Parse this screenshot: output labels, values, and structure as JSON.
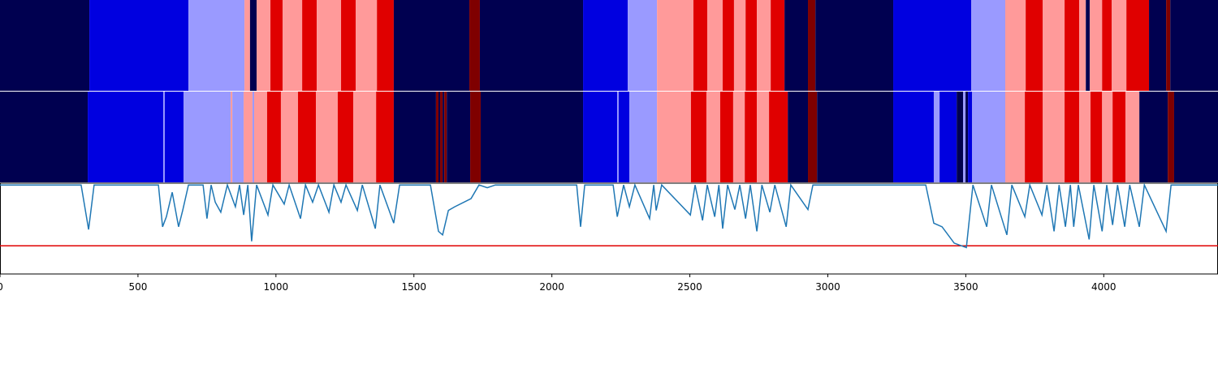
{
  "chart_data": {
    "type": "segmentation",
    "xlim": [
      0,
      4414
    ],
    "xticks": [
      0,
      500,
      1000,
      1500,
      2000,
      2500,
      3000,
      3500,
      4000
    ],
    "ylim": [
      0,
      1
    ],
    "bars": [
      {
        "edges": [
          0,
          324,
          683,
          886,
          906,
          930,
          980,
          1024,
          1095,
          1148,
          1236,
          1289,
          1366,
          1427,
          1701,
          1739,
          2113,
          2275,
          2381,
          2513,
          2563,
          2619,
          2660,
          2702,
          2743,
          2793,
          2843,
          2928,
          2955,
          3237,
          3520,
          3643,
          3717,
          3779,
          3858,
          3911,
          3935,
          3949,
          3994,
          4029,
          4082,
          4164,
          4226,
          4241,
          4414
        ],
        "colors": [
          "#000050",
          "#0000e0",
          "#9a9aff",
          "#ff9a9a",
          "#000050",
          "#ff9a9a",
          "#e00000",
          "#ff9a9a",
          "#e00000",
          "#ff9a9a",
          "#e00000",
          "#ff9a9a",
          "#e00000",
          "#000050",
          "#7f0000",
          "#000050",
          "#0000e0",
          "#9a9aff",
          "#ff9a9a",
          "#e00000",
          "#ff9a9a",
          "#e00000",
          "#ff9a9a",
          "#e00000",
          "#ff9a9a",
          "#e00000",
          "#000050",
          "#7f0000",
          "#000050",
          "#0000e0",
          "#9a9aff",
          "#ff9a9a",
          "#e00000",
          "#ff9a9a",
          "#e00000",
          "#ff9a9a",
          "#000050",
          "#ff9a9a",
          "#e00000",
          "#ff9a9a",
          "#e00000",
          "#000050",
          "#7f0000",
          "#000050"
        ]
      },
      {
        "edges": [
          0,
          318,
          592,
          597,
          665,
          836,
          842,
          883,
          915,
          921,
          968,
          1018,
          1080,
          1145,
          1224,
          1280,
          1363,
          1427,
          1580,
          1589,
          1595,
          1604,
          1610,
          1619,
          1704,
          1742,
          2113,
          2237,
          2242,
          2281,
          2381,
          2504,
          2560,
          2610,
          2657,
          2699,
          2743,
          2787,
          2855,
          2928,
          2961,
          3237,
          3384,
          3405,
          3467,
          3490,
          3499,
          3508,
          3523,
          3643,
          3714,
          3779,
          3858,
          3911,
          3952,
          3994,
          4032,
          4079,
          4129,
          4232,
          4255,
          4414
        ],
        "colors": [
          "#000050",
          "#0000e0",
          "#9a9aff",
          "#0000e0",
          "#9a9aff",
          "#ff9a9a",
          "#9a9aff",
          "#ff9a9a",
          "#9a9aff",
          "#ff9a9a",
          "#e00000",
          "#ff9a9a",
          "#e00000",
          "#ff9a9a",
          "#e00000",
          "#ff9a9a",
          "#e00000",
          "#000050",
          "#7f0000",
          "#000050",
          "#7f0000",
          "#000050",
          "#7f0000",
          "#000050",
          "#7f0000",
          "#000050",
          "#0000e0",
          "#9a9aff",
          "#0000e0",
          "#9a9aff",
          "#ff9a9a",
          "#e00000",
          "#ff9a9a",
          "#e00000",
          "#ff9a9a",
          "#e00000",
          "#ff9a9a",
          "#e00000",
          "#000050",
          "#7f0000",
          "#000050",
          "#0000e0",
          "#9a9aff",
          "#0000e0",
          "#000050",
          "#9a9aff",
          "#000050",
          "#0000e0",
          "#9a9aff",
          "#ff9a9a",
          "#e00000",
          "#ff9a9a",
          "#e00000",
          "#ff9a9a",
          "#e00000",
          "#ff9a9a",
          "#e00000",
          "#ff9a9a",
          "#000050",
          "#7f0000",
          "#000050"
        ]
      }
    ],
    "line": {
      "color": "#1f77b4",
      "x": [
        0,
        294,
        321,
        341,
        574,
        589,
        603,
        624,
        647,
        662,
        683,
        736,
        750,
        765,
        780,
        800,
        824,
        853,
        868,
        883,
        898,
        912,
        930,
        971,
        989,
        1030,
        1048,
        1089,
        1107,
        1133,
        1154,
        1192,
        1210,
        1236,
        1254,
        1295,
        1313,
        1360,
        1377,
        1427,
        1448,
        1560,
        1589,
        1604,
        1625,
        1648,
        1707,
        1736,
        1766,
        1795,
        2090,
        2104,
        2119,
        2222,
        2237,
        2260,
        2281,
        2301,
        2354,
        2369,
        2378,
        2398,
        2502,
        2519,
        2546,
        2563,
        2590,
        2605,
        2619,
        2637,
        2663,
        2681,
        2702,
        2719,
        2743,
        2761,
        2790,
        2808,
        2849,
        2866,
        2928,
        2946,
        3355,
        3384,
        3414,
        3458,
        3502,
        3526,
        3576,
        3593,
        3649,
        3667,
        3714,
        3732,
        3776,
        3794,
        3820,
        3838,
        3861,
        3879,
        3891,
        3908,
        3947,
        3964,
        3994,
        4011,
        4032,
        4050,
        4076,
        4094,
        4129,
        4147,
        4226,
        4244,
        4414
      ],
      "values": [
        0.98,
        0.98,
        0.49,
        0.98,
        0.98,
        0.52,
        0.63,
        0.9,
        0.52,
        0.7,
        0.98,
        0.98,
        0.61,
        0.98,
        0.79,
        0.68,
        0.98,
        0.74,
        0.98,
        0.65,
        0.98,
        0.36,
        0.98,
        0.65,
        0.98,
        0.77,
        0.98,
        0.61,
        0.98,
        0.79,
        0.98,
        0.68,
        0.98,
        0.79,
        0.98,
        0.7,
        0.98,
        0.5,
        0.98,
        0.56,
        0.98,
        0.98,
        0.47,
        0.43,
        0.7,
        0.74,
        0.83,
        0.98,
        0.95,
        0.98,
        0.98,
        0.52,
        0.98,
        0.98,
        0.63,
        0.98,
        0.74,
        0.98,
        0.61,
        0.98,
        0.7,
        0.98,
        0.65,
        0.98,
        0.59,
        0.98,
        0.63,
        0.98,
        0.5,
        0.98,
        0.71,
        0.98,
        0.61,
        0.98,
        0.47,
        0.98,
        0.68,
        0.98,
        0.52,
        0.98,
        0.71,
        0.98,
        0.98,
        0.56,
        0.52,
        0.34,
        0.29,
        0.98,
        0.52,
        0.98,
        0.43,
        0.98,
        0.63,
        0.98,
        0.65,
        0.98,
        0.47,
        0.98,
        0.52,
        0.98,
        0.52,
        0.98,
        0.38,
        0.98,
        0.47,
        0.98,
        0.54,
        0.98,
        0.52,
        0.98,
        0.52,
        0.98,
        0.47,
        0.98,
        0.98
      ]
    },
    "threshold": {
      "value": 0.31,
      "color": "#e00000"
    }
  }
}
